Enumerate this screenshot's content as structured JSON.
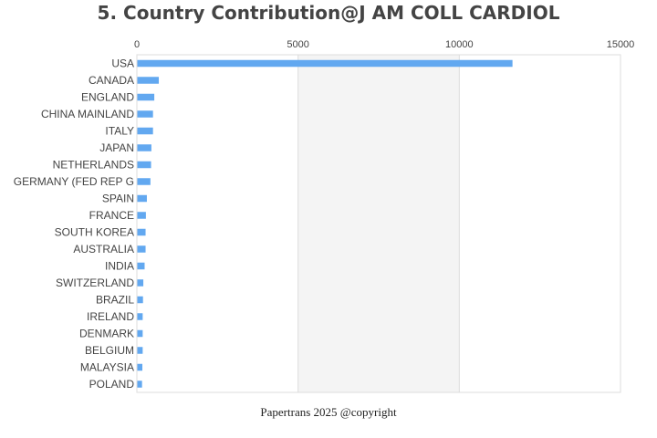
{
  "chart_data": {
    "type": "bar",
    "orientation": "horizontal",
    "title": "5. Country Contribution@J AM COLL CARDIOL",
    "xlabel": "",
    "ylabel": "",
    "xlim": [
      0,
      15000
    ],
    "x_ticks": [
      "0",
      "5000",
      "10000",
      "15000"
    ],
    "x_axis_position": "top",
    "grid": true,
    "legend": "none",
    "categories": [
      "USA",
      "CANADA",
      "ENGLAND",
      "CHINA MAINLAND",
      "ITALY",
      "JAPAN",
      "NETHERLANDS",
      "GERMANY (FED REP G",
      "SPAIN",
      "FRANCE",
      "SOUTH KOREA",
      "AUSTRALIA",
      "INDIA",
      "SWITZERLAND",
      "BRAZIL",
      "IRELAND",
      "DENMARK",
      "BELGIUM",
      "MALAYSIA",
      "POLAND"
    ],
    "values": [
      11650,
      680,
      540,
      500,
      500,
      450,
      440,
      420,
      310,
      280,
      270,
      270,
      240,
      200,
      190,
      180,
      180,
      180,
      170,
      160
    ],
    "colors": {
      "bar": "#62a8f0",
      "band": "#f4f4f4",
      "grid": "#dddddd",
      "border": "#dddddd"
    }
  },
  "footer": "Papertrans 2025 @copyright"
}
